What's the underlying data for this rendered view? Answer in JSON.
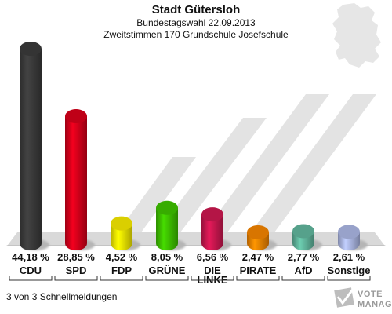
{
  "header": {
    "title": "Stadt Gütersloh",
    "subtitle1": "Bundestagswahl 22.09.2013",
    "subtitle2": "Zweitstimmen 170 Grundschule Josefschule"
  },
  "footer": {
    "status": "3 von 3 Schnellmeldungen",
    "logo_line1": "VOTE",
    "logo_line2": "MANAGER"
  },
  "chart_data": {
    "type": "bar",
    "categories": [
      "CDU",
      "SPD",
      "FDP",
      "GRÜNE",
      "DIE LINKE",
      "PIRATE",
      "AfD",
      "Sonstige"
    ],
    "values": [
      44.18,
      28.85,
      4.52,
      8.05,
      6.56,
      2.47,
      2.77,
      2.61
    ],
    "value_labels": [
      "44,18 %",
      "28,85 %",
      "4,52 %",
      "8,05 %",
      "6,56 %",
      "2,47 %",
      "2,77 %",
      "2,61 %"
    ],
    "category_labels": [
      [
        "CDU"
      ],
      [
        "SPD"
      ],
      [
        "FDP"
      ],
      [
        "GRÜNE"
      ],
      [
        "DIE",
        "LINKE"
      ],
      [
        "PIRATE"
      ],
      [
        "AfD"
      ],
      [
        "Sonstige"
      ]
    ],
    "colors": [
      "#3a3a3a",
      "#d4001a",
      "#f2e600",
      "#3dbf00",
      "#c8174e",
      "#f08200",
      "#5fb39a",
      "#a9b4e0"
    ],
    "ylim": [
      0,
      44.18
    ],
    "grid": false,
    "legend": "none"
  }
}
